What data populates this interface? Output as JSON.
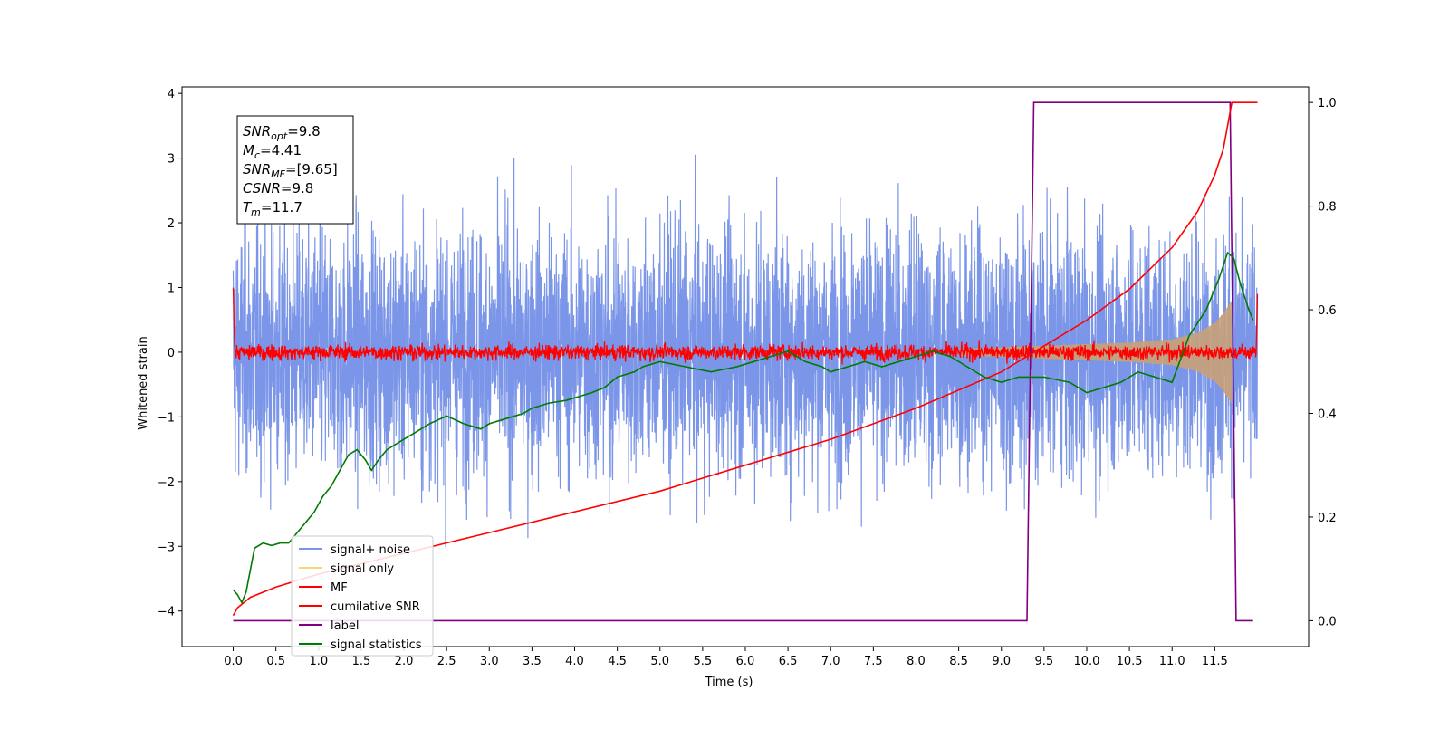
{
  "chart_data": {
    "type": "line",
    "title": "",
    "xlabel": "Time (s)",
    "ylabel_left": "Whitened strain",
    "ylabel_right": "",
    "xlim": [
      -0.6,
      12.6
    ],
    "ylim_left": [
      -4.55,
      4.1
    ],
    "ylim_right": [
      -0.05,
      1.03
    ],
    "x_ticks": [
      "0.0",
      "0.5",
      "1.0",
      "1.5",
      "2.0",
      "2.5",
      "3.0",
      "3.5",
      "4.0",
      "4.5",
      "5.0",
      "5.5",
      "6.0",
      "6.5",
      "7.0",
      "7.5",
      "8.0",
      "8.5",
      "9.0",
      "9.5",
      "10.0",
      "10.5",
      "11.0",
      "11.5"
    ],
    "y_ticks_left": [
      "4",
      "3",
      "2",
      "1",
      "0",
      "−1",
      "−2",
      "−3",
      "−4"
    ],
    "y_ticks_right": [
      "1.0",
      "0.8",
      "0.6",
      "0.4",
      "0.2",
      "0.0"
    ],
    "grid": false,
    "legend_position": "lower-left",
    "legend": [
      {
        "label": "signal+ noise",
        "color": "#7b96e8"
      },
      {
        "label": "signal only",
        "color": "#f7d57e"
      },
      {
        "label": "MF",
        "color": "#ff0000"
      },
      {
        "label": "cumilative SNR",
        "color": "#ff0000"
      },
      {
        "label": "label",
        "color": "#800080"
      },
      {
        "label": "signal statistics",
        "color": "#007a00"
      }
    ],
    "info_box": [
      {
        "main": "SNR",
        "sub": "opt",
        "value": "=9.8"
      },
      {
        "main": "M",
        "sub": "c",
        "value": "=4.41"
      },
      {
        "main": "SNR",
        "sub": "MF",
        "value": "=[9.65]"
      },
      {
        "main": "CSNR",
        "sub": "",
        "value": "=9.8"
      },
      {
        "main": "T",
        "sub": "m",
        "value": "=11.7"
      }
    ],
    "series": [
      {
        "name": "label",
        "axis": "right",
        "color": "#800080",
        "x": [
          0.0,
          9.3,
          9.38,
          11.68,
          11.75,
          11.95
        ],
        "y": [
          0.0,
          0.0,
          1.0,
          1.0,
          0.0,
          0.0
        ]
      },
      {
        "name": "cumilative SNR",
        "axis": "right",
        "color": "#ff0000",
        "x": [
          0.0,
          0.05,
          0.2,
          0.5,
          1.0,
          2.0,
          3.0,
          4.0,
          5.0,
          6.0,
          7.0,
          8.0,
          9.0,
          9.5,
          10.0,
          10.5,
          11.0,
          11.3,
          11.5,
          11.6,
          11.7,
          12.0
        ],
        "y": [
          0.01,
          0.025,
          0.045,
          0.065,
          0.09,
          0.13,
          0.17,
          0.21,
          0.25,
          0.3,
          0.35,
          0.41,
          0.48,
          0.53,
          0.58,
          0.64,
          0.72,
          0.79,
          0.86,
          0.91,
          1.0,
          1.0
        ]
      },
      {
        "name": "signal statistics",
        "axis": "right",
        "color": "#007a00",
        "x": [
          0.0,
          0.05,
          0.1,
          0.15,
          0.25,
          0.35,
          0.45,
          0.55,
          0.65,
          0.75,
          0.85,
          0.95,
          1.05,
          1.15,
          1.25,
          1.35,
          1.45,
          1.55,
          1.62,
          1.7,
          1.8,
          1.9,
          2.0,
          2.1,
          2.2,
          2.3,
          2.5,
          2.7,
          2.9,
          3.0,
          3.2,
          3.4,
          3.5,
          3.7,
          3.9,
          4.0,
          4.2,
          4.35,
          4.5,
          4.7,
          4.8,
          5.0,
          5.3,
          5.6,
          5.9,
          6.1,
          6.3,
          6.5,
          6.7,
          6.9,
          7.0,
          7.2,
          7.4,
          7.6,
          7.8,
          8.0,
          8.2,
          8.4,
          8.6,
          8.8,
          9.0,
          9.2,
          9.5,
          9.8,
          10.0,
          10.2,
          10.4,
          10.6,
          10.8,
          11.0,
          11.2,
          11.4,
          11.55,
          11.65,
          11.72,
          11.8,
          11.9,
          11.95
        ],
        "y": [
          0.06,
          0.05,
          0.035,
          0.055,
          0.14,
          0.15,
          0.145,
          0.15,
          0.15,
          0.17,
          0.19,
          0.21,
          0.24,
          0.26,
          0.29,
          0.32,
          0.33,
          0.31,
          0.29,
          0.31,
          0.33,
          0.34,
          0.35,
          0.36,
          0.37,
          0.38,
          0.395,
          0.38,
          0.37,
          0.38,
          0.39,
          0.4,
          0.41,
          0.42,
          0.425,
          0.43,
          0.44,
          0.45,
          0.47,
          0.48,
          0.49,
          0.5,
          0.49,
          0.48,
          0.49,
          0.5,
          0.51,
          0.52,
          0.5,
          0.49,
          0.48,
          0.49,
          0.5,
          0.49,
          0.5,
          0.51,
          0.52,
          0.51,
          0.49,
          0.47,
          0.46,
          0.47,
          0.47,
          0.46,
          0.44,
          0.45,
          0.46,
          0.48,
          0.47,
          0.46,
          0.55,
          0.6,
          0.66,
          0.71,
          0.7,
          0.65,
          0.6,
          0.58
        ]
      }
    ],
    "noise_series": {
      "name": "signal+ noise",
      "axis": "left",
      "color": "#7b96e8",
      "x_range": [
        0.0,
        12.0
      ],
      "mean": 0.0,
      "std": 0.95
    },
    "mf_series": {
      "name": "MF",
      "axis": "left",
      "color": "#ff0000",
      "x_range": [
        0.0,
        12.0
      ],
      "amplitude": 0.1
    },
    "signal_envelope": {
      "name": "signal only",
      "axis": "left",
      "color": "#c8a078",
      "x": [
        8.5,
        9.5,
        10.5,
        11.0,
        11.3,
        11.5,
        11.6,
        11.7
      ],
      "y": [
        0.05,
        0.1,
        0.15,
        0.2,
        0.3,
        0.45,
        0.6,
        0.8
      ]
    }
  }
}
